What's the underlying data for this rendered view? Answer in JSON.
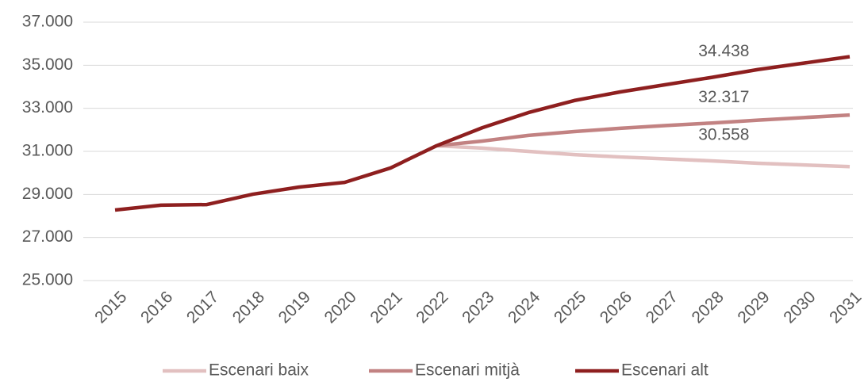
{
  "chart_data": {
    "type": "line",
    "categories": [
      "2015",
      "2016",
      "2017",
      "2018",
      "2019",
      "2020",
      "2021",
      "2022",
      "2023",
      "2024",
      "2025",
      "2026",
      "2027",
      "2028",
      "2029",
      "2030",
      "2031"
    ],
    "series": [
      {
        "name": "Escenari baix",
        "color": "#e2c0c0",
        "values": [
          null,
          null,
          null,
          null,
          null,
          null,
          null,
          31260,
          31150,
          31000,
          30850,
          30740,
          30650,
          30558,
          30450,
          30370,
          30290
        ],
        "value_labels": [
          null,
          null,
          null,
          null,
          null,
          null,
          null,
          null,
          null,
          null,
          null,
          null,
          null,
          "30.558",
          null,
          null,
          null
        ]
      },
      {
        "name": "Escenari mitjà",
        "color": "#c28282",
        "values": [
          null,
          null,
          null,
          null,
          null,
          null,
          null,
          31260,
          31480,
          31740,
          31920,
          32070,
          32200,
          32317,
          32450,
          32570,
          32690
        ],
        "value_labels": [
          null,
          null,
          null,
          null,
          null,
          null,
          null,
          null,
          null,
          null,
          null,
          null,
          null,
          "32.317",
          null,
          null,
          null
        ]
      },
      {
        "name": "Escenari alt",
        "color": "#8e1f1f",
        "values": [
          28276,
          28500,
          28530,
          29010,
          29340,
          29560,
          30230,
          31260,
          32100,
          32800,
          33360,
          33760,
          34100,
          34438,
          34800,
          35100,
          35400
        ],
        "value_labels": [
          null,
          null,
          null,
          null,
          null,
          null,
          null,
          null,
          null,
          null,
          null,
          null,
          null,
          "34.438",
          null,
          null,
          null
        ]
      }
    ],
    "ylim": [
      25000,
      37000
    ],
    "yticks": [
      {
        "value": 25000,
        "label": "25.000"
      },
      {
        "value": 27000,
        "label": "27.000"
      },
      {
        "value": 29000,
        "label": "29.000"
      },
      {
        "value": 31000,
        "label": "31.000"
      },
      {
        "value": 33000,
        "label": "33.000"
      },
      {
        "value": 35000,
        "label": "35.000"
      },
      {
        "value": 37000,
        "label": "37.000"
      }
    ],
    "grid": true,
    "legend": "bottom"
  }
}
